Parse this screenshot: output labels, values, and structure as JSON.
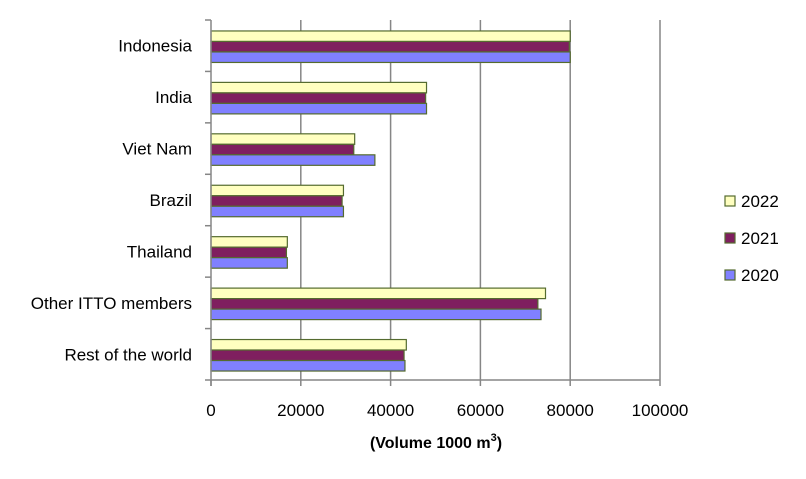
{
  "chart_data": {
    "type": "bar",
    "orientation": "horizontal",
    "categories": [
      "Indonesia",
      "India",
      "Viet Nam",
      "Brazil",
      "Thailand",
      "Other ITTO members",
      "Rest of the world"
    ],
    "series": [
      {
        "name": "2022",
        "color": "#FFFFC0",
        "values": [
          80000,
          48000,
          32000,
          29500,
          17000,
          74500,
          43500
        ]
      },
      {
        "name": "2021",
        "color": "#7F1F5F",
        "values": [
          79800,
          47800,
          31800,
          29200,
          16800,
          72800,
          43000
        ]
      },
      {
        "name": "2020",
        "color": "#8080FF",
        "values": [
          80000,
          48000,
          36500,
          29500,
          17000,
          73500,
          43200
        ]
      }
    ],
    "xlim": [
      0,
      100000
    ],
    "xticks": [
      "0",
      "20000",
      "40000",
      "60000",
      "80000",
      "100000"
    ],
    "xlabel": "(Volume 1000 m",
    "xlabel_superscript": "3",
    "xlabel_suffix": ")",
    "ylabel": "",
    "grid": true,
    "legend_position": "right",
    "bar_outline_color": "#556B2F"
  }
}
